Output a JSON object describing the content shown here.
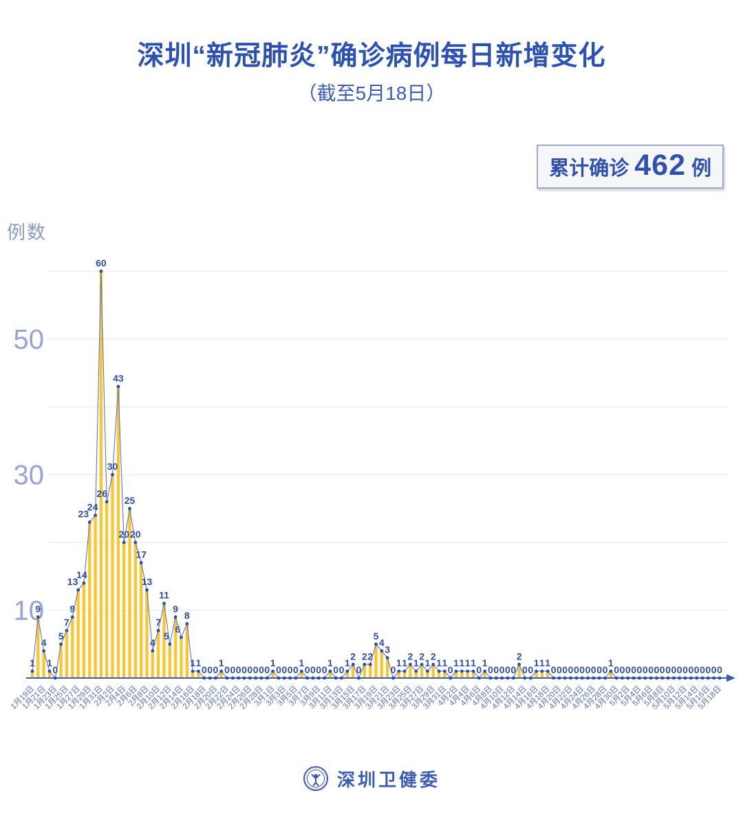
{
  "title": "深圳“新冠肺炎”确诊病例每日新增变化",
  "subtitle": "（截至5月18日）",
  "badge": {
    "label": "累计确诊",
    "value": "462",
    "unit": "例"
  },
  "footer": {
    "org": "深圳卫健委"
  },
  "chart_data": {
    "type": "bar",
    "line_overlay": true,
    "title": "深圳“新冠肺炎”确诊病例每日新增变化",
    "subtitle": "（截至5月18日）",
    "ylabel": "例数",
    "ylim": [
      0,
      62
    ],
    "yticks": [
      10,
      30,
      50
    ],
    "gridlines": [
      10,
      20,
      30,
      40,
      50,
      60
    ],
    "grid_on": true,
    "legend_position": "none",
    "x_tick_every": 2,
    "bar_color": "#fcc632",
    "line_color": "#5b76c4",
    "point_color": "#2e4ea6",
    "label_color": "#2e4ea6",
    "axis_color": "#3f5cb0",
    "tick_label_color": "#5570bd",
    "ytick_label_color": "#97a2d6",
    "categories": [
      "1月19日",
      "1月20日",
      "1月21日",
      "1月22日",
      "1月23日",
      "1月24日",
      "1月25日",
      "1月26日",
      "1月27日",
      "1月28日",
      "1月29日",
      "1月30日",
      "1月31日",
      "2月1日",
      "2月2日",
      "2月3日",
      "2月4日",
      "2月5日",
      "2月6日",
      "2月7日",
      "2月8日",
      "2月9日",
      "2月10日",
      "2月11日",
      "2月12日",
      "2月13日",
      "2月14日",
      "2月15日",
      "2月16日",
      "2月17日",
      "2月18日",
      "2月19日",
      "2月20日",
      "2月21日",
      "2月22日",
      "2月23日",
      "2月24日",
      "2月25日",
      "2月26日",
      "2月27日",
      "2月28日",
      "2月29日",
      "3月1日",
      "3月2日",
      "3月3日",
      "3月4日",
      "3月5日",
      "3月6日",
      "3月7日",
      "3月8日",
      "3月9日",
      "3月10日",
      "3月11日",
      "3月12日",
      "3月13日",
      "3月14日",
      "3月15日",
      "3月16日",
      "3月17日",
      "3月18日",
      "3月19日",
      "3月20日",
      "3月21日",
      "3月22日",
      "3月23日",
      "3月24日",
      "3月25日",
      "3月26日",
      "3月27日",
      "3月28日",
      "3月29日",
      "3月30日",
      "3月31日",
      "4月1日",
      "4月2日",
      "4月3日",
      "4月4日",
      "4月5日",
      "4月6日",
      "4月7日",
      "4月8日",
      "4月9日",
      "4月10日",
      "4月11日",
      "4月12日",
      "4月13日",
      "4月14日",
      "4月15日",
      "4月16日",
      "4月17日",
      "4月18日",
      "4月19日",
      "4月20日",
      "4月21日",
      "4月22日",
      "4月23日",
      "4月24日",
      "4月25日",
      "4月26日",
      "4月27日",
      "4月28日",
      "4月29日",
      "4月30日",
      "5月1日",
      "5月2日",
      "5月3日",
      "5月4日",
      "5月5日",
      "5月6日",
      "5月7日",
      "5月8日",
      "5月9日",
      "5月10日",
      "5月11日",
      "5月12日",
      "5月13日",
      "5月14日",
      "5月15日",
      "5月16日",
      "5月17日",
      "5月18日"
    ],
    "values": [
      1,
      9,
      4,
      1,
      0,
      5,
      7,
      9,
      13,
      14,
      23,
      24,
      60,
      26,
      30,
      43,
      20,
      25,
      20,
      17,
      13,
      4,
      7,
      11,
      5,
      9,
      6,
      8,
      1,
      1,
      0,
      0,
      0,
      1,
      0,
      0,
      0,
      0,
      0,
      0,
      0,
      0,
      1,
      0,
      0,
      0,
      0,
      1,
      0,
      0,
      0,
      0,
      1,
      0,
      0,
      1,
      2,
      0,
      2,
      2,
      5,
      4,
      3,
      0,
      1,
      1,
      2,
      1,
      2,
      1,
      2,
      1,
      1,
      0,
      1,
      1,
      1,
      1,
      0,
      1,
      0,
      0,
      0,
      0,
      0,
      2,
      0,
      0,
      1,
      1,
      1,
      0,
      0,
      0,
      0,
      0,
      0,
      0,
      0,
      0,
      0,
      1,
      0,
      0,
      0,
      0,
      0,
      0,
      0,
      0,
      0,
      0,
      0,
      0,
      0,
      0,
      0,
      0,
      0,
      0,
      0
    ],
    "total": 462
  }
}
